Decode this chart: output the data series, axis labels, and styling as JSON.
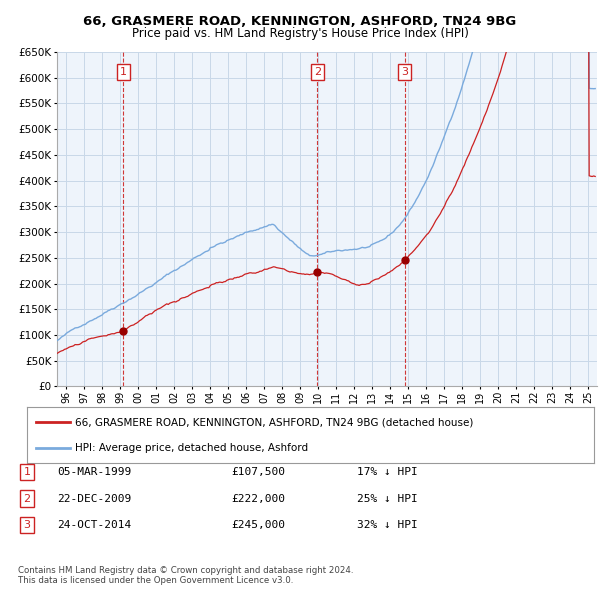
{
  "title": "66, GRASMERE ROAD, KENNINGTON, ASHFORD, TN24 9BG",
  "subtitle": "Price paid vs. HM Land Registry's House Price Index (HPI)",
  "ylim": [
    0,
    650000
  ],
  "yticks": [
    0,
    50000,
    100000,
    150000,
    200000,
    250000,
    300000,
    350000,
    400000,
    450000,
    500000,
    550000,
    600000,
    650000
  ],
  "xlim_start": 1995.5,
  "xlim_end": 2025.5,
  "hpi_color": "#7aaadd",
  "price_color": "#cc2222",
  "vline_color": "#cc2222",
  "grid_color": "#c8d8e8",
  "bg_color": "#eef4fb",
  "transactions": [
    {
      "num": 1,
      "date": "05-MAR-1999",
      "price": 107500,
      "year": 1999.18,
      "pct": "17%",
      "dir": "↓"
    },
    {
      "num": 2,
      "date": "22-DEC-2009",
      "price": 222000,
      "year": 2009.97,
      "pct": "25%",
      "dir": "↓"
    },
    {
      "num": 3,
      "date": "24-OCT-2014",
      "price": 245000,
      "year": 2014.81,
      "pct": "32%",
      "dir": "↓"
    }
  ],
  "legend_line1": "66, GRASMERE ROAD, KENNINGTON, ASHFORD, TN24 9BG (detached house)",
  "legend_line2": "HPI: Average price, detached house, Ashford",
  "copyright": "Contains HM Land Registry data © Crown copyright and database right 2024.\nThis data is licensed under the Open Government Licence v3.0."
}
